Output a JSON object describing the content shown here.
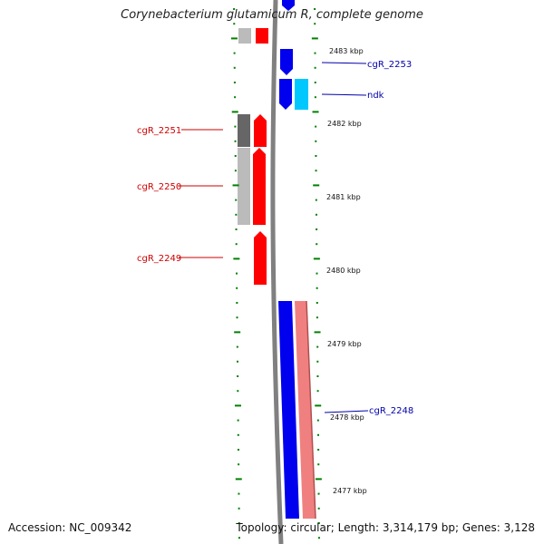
{
  "title": "Corynebacterium glutamicum R, complete genome",
  "accession": "Accession: NC_009342",
  "topology": "Topology: circular; Length: 3,314,179 bp; Genes: 3,128",
  "colors": {
    "forward_gene": "#ff0000",
    "forward_gene_pale": "#ff4040",
    "reverse_gene": "#0000ee",
    "reverse_gene_light": "#00c8ff",
    "pink_band": "#f08080",
    "grey_strip": "#bbbbbb",
    "dark_grey_strip": "#666666",
    "backbone": "#808080",
    "tick": "#008000",
    "left_label": "#cc0000",
    "right_label": "#0000aa"
  },
  "scale_labels": [
    "2483 kbp",
    "2482 kbp",
    "2481 kbp",
    "2480 kbp",
    "2479 kbp",
    "2478 kbp",
    "2477 kbp"
  ],
  "gene_labels_left": [
    "cgR_2251",
    "cgR_2250",
    "cgR_2249"
  ],
  "gene_labels_right": [
    "cgR_2253",
    "ndk",
    "cgR_2248"
  ]
}
